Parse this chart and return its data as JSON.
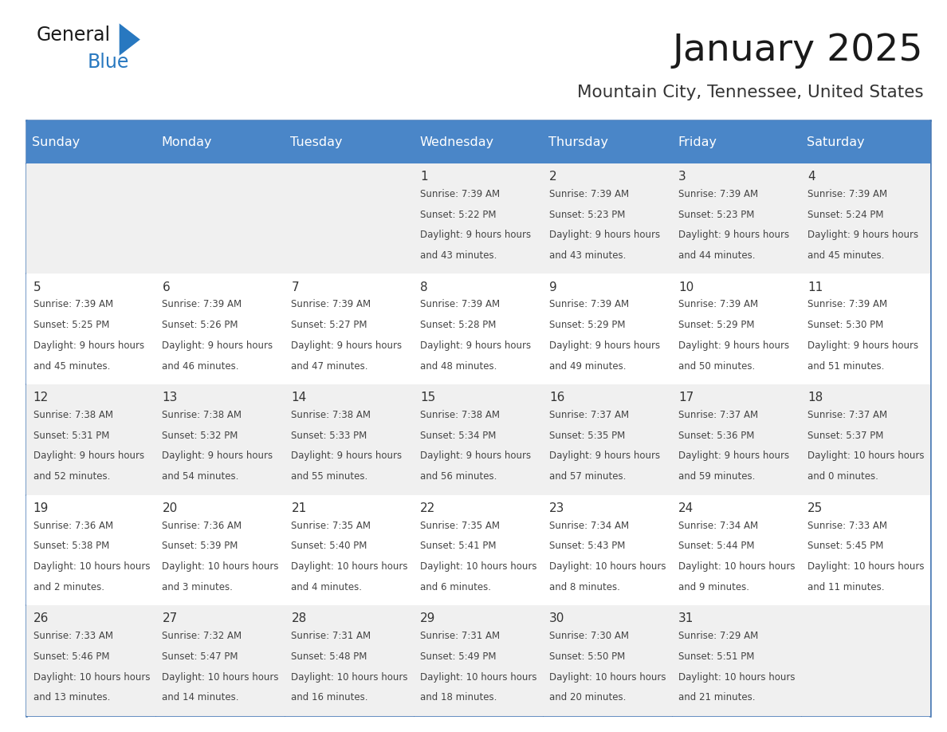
{
  "title": "January 2025",
  "subtitle": "Mountain City, Tennessee, United States",
  "days_of_week": [
    "Sunday",
    "Monday",
    "Tuesday",
    "Wednesday",
    "Thursday",
    "Friday",
    "Saturday"
  ],
  "header_bg": "#4a86c8",
  "header_text": "#ffffff",
  "cell_bg_even": "#f0f0f0",
  "cell_bg_odd": "#ffffff",
  "cell_border": "#4a7ab5",
  "day_num_color": "#333333",
  "text_color": "#444444",
  "title_color": "#1a1a1a",
  "subtitle_color": "#333333",
  "logo_general_color": "#1a1a1a",
  "logo_blue_color": "#2878c0",
  "calendar_data": [
    {
      "day": 1,
      "col": 3,
      "row": 0,
      "sunrise": "7:39 AM",
      "sunset": "5:22 PM",
      "daylight": "9 hours and 43 minutes."
    },
    {
      "day": 2,
      "col": 4,
      "row": 0,
      "sunrise": "7:39 AM",
      "sunset": "5:23 PM",
      "daylight": "9 hours and 43 minutes."
    },
    {
      "day": 3,
      "col": 5,
      "row": 0,
      "sunrise": "7:39 AM",
      "sunset": "5:23 PM",
      "daylight": "9 hours and 44 minutes."
    },
    {
      "day": 4,
      "col": 6,
      "row": 0,
      "sunrise": "7:39 AM",
      "sunset": "5:24 PM",
      "daylight": "9 hours and 45 minutes."
    },
    {
      "day": 5,
      "col": 0,
      "row": 1,
      "sunrise": "7:39 AM",
      "sunset": "5:25 PM",
      "daylight": "9 hours and 45 minutes."
    },
    {
      "day": 6,
      "col": 1,
      "row": 1,
      "sunrise": "7:39 AM",
      "sunset": "5:26 PM",
      "daylight": "9 hours and 46 minutes."
    },
    {
      "day": 7,
      "col": 2,
      "row": 1,
      "sunrise": "7:39 AM",
      "sunset": "5:27 PM",
      "daylight": "9 hours and 47 minutes."
    },
    {
      "day": 8,
      "col": 3,
      "row": 1,
      "sunrise": "7:39 AM",
      "sunset": "5:28 PM",
      "daylight": "9 hours and 48 minutes."
    },
    {
      "day": 9,
      "col": 4,
      "row": 1,
      "sunrise": "7:39 AM",
      "sunset": "5:29 PM",
      "daylight": "9 hours and 49 minutes."
    },
    {
      "day": 10,
      "col": 5,
      "row": 1,
      "sunrise": "7:39 AM",
      "sunset": "5:29 PM",
      "daylight": "9 hours and 50 minutes."
    },
    {
      "day": 11,
      "col": 6,
      "row": 1,
      "sunrise": "7:39 AM",
      "sunset": "5:30 PM",
      "daylight": "9 hours and 51 minutes."
    },
    {
      "day": 12,
      "col": 0,
      "row": 2,
      "sunrise": "7:38 AM",
      "sunset": "5:31 PM",
      "daylight": "9 hours and 52 minutes."
    },
    {
      "day": 13,
      "col": 1,
      "row": 2,
      "sunrise": "7:38 AM",
      "sunset": "5:32 PM",
      "daylight": "9 hours and 54 minutes."
    },
    {
      "day": 14,
      "col": 2,
      "row": 2,
      "sunrise": "7:38 AM",
      "sunset": "5:33 PM",
      "daylight": "9 hours and 55 minutes."
    },
    {
      "day": 15,
      "col": 3,
      "row": 2,
      "sunrise": "7:38 AM",
      "sunset": "5:34 PM",
      "daylight": "9 hours and 56 minutes."
    },
    {
      "day": 16,
      "col": 4,
      "row": 2,
      "sunrise": "7:37 AM",
      "sunset": "5:35 PM",
      "daylight": "9 hours and 57 minutes."
    },
    {
      "day": 17,
      "col": 5,
      "row": 2,
      "sunrise": "7:37 AM",
      "sunset": "5:36 PM",
      "daylight": "9 hours and 59 minutes."
    },
    {
      "day": 18,
      "col": 6,
      "row": 2,
      "sunrise": "7:37 AM",
      "sunset": "5:37 PM",
      "daylight": "10 hours and 0 minutes."
    },
    {
      "day": 19,
      "col": 0,
      "row": 3,
      "sunrise": "7:36 AM",
      "sunset": "5:38 PM",
      "daylight": "10 hours and 2 minutes."
    },
    {
      "day": 20,
      "col": 1,
      "row": 3,
      "sunrise": "7:36 AM",
      "sunset": "5:39 PM",
      "daylight": "10 hours and 3 minutes."
    },
    {
      "day": 21,
      "col": 2,
      "row": 3,
      "sunrise": "7:35 AM",
      "sunset": "5:40 PM",
      "daylight": "10 hours and 4 minutes."
    },
    {
      "day": 22,
      "col": 3,
      "row": 3,
      "sunrise": "7:35 AM",
      "sunset": "5:41 PM",
      "daylight": "10 hours and 6 minutes."
    },
    {
      "day": 23,
      "col": 4,
      "row": 3,
      "sunrise": "7:34 AM",
      "sunset": "5:43 PM",
      "daylight": "10 hours and 8 minutes."
    },
    {
      "day": 24,
      "col": 5,
      "row": 3,
      "sunrise": "7:34 AM",
      "sunset": "5:44 PM",
      "daylight": "10 hours and 9 minutes."
    },
    {
      "day": 25,
      "col": 6,
      "row": 3,
      "sunrise": "7:33 AM",
      "sunset": "5:45 PM",
      "daylight": "10 hours and 11 minutes."
    },
    {
      "day": 26,
      "col": 0,
      "row": 4,
      "sunrise": "7:33 AM",
      "sunset": "5:46 PM",
      "daylight": "10 hours and 13 minutes."
    },
    {
      "day": 27,
      "col": 1,
      "row": 4,
      "sunrise": "7:32 AM",
      "sunset": "5:47 PM",
      "daylight": "10 hours and 14 minutes."
    },
    {
      "day": 28,
      "col": 2,
      "row": 4,
      "sunrise": "7:31 AM",
      "sunset": "5:48 PM",
      "daylight": "10 hours and 16 minutes."
    },
    {
      "day": 29,
      "col": 3,
      "row": 4,
      "sunrise": "7:31 AM",
      "sunset": "5:49 PM",
      "daylight": "10 hours and 18 minutes."
    },
    {
      "day": 30,
      "col": 4,
      "row": 4,
      "sunrise": "7:30 AM",
      "sunset": "5:50 PM",
      "daylight": "10 hours and 20 minutes."
    },
    {
      "day": 31,
      "col": 5,
      "row": 4,
      "sunrise": "7:29 AM",
      "sunset": "5:51 PM",
      "daylight": "10 hours and 21 minutes."
    }
  ]
}
